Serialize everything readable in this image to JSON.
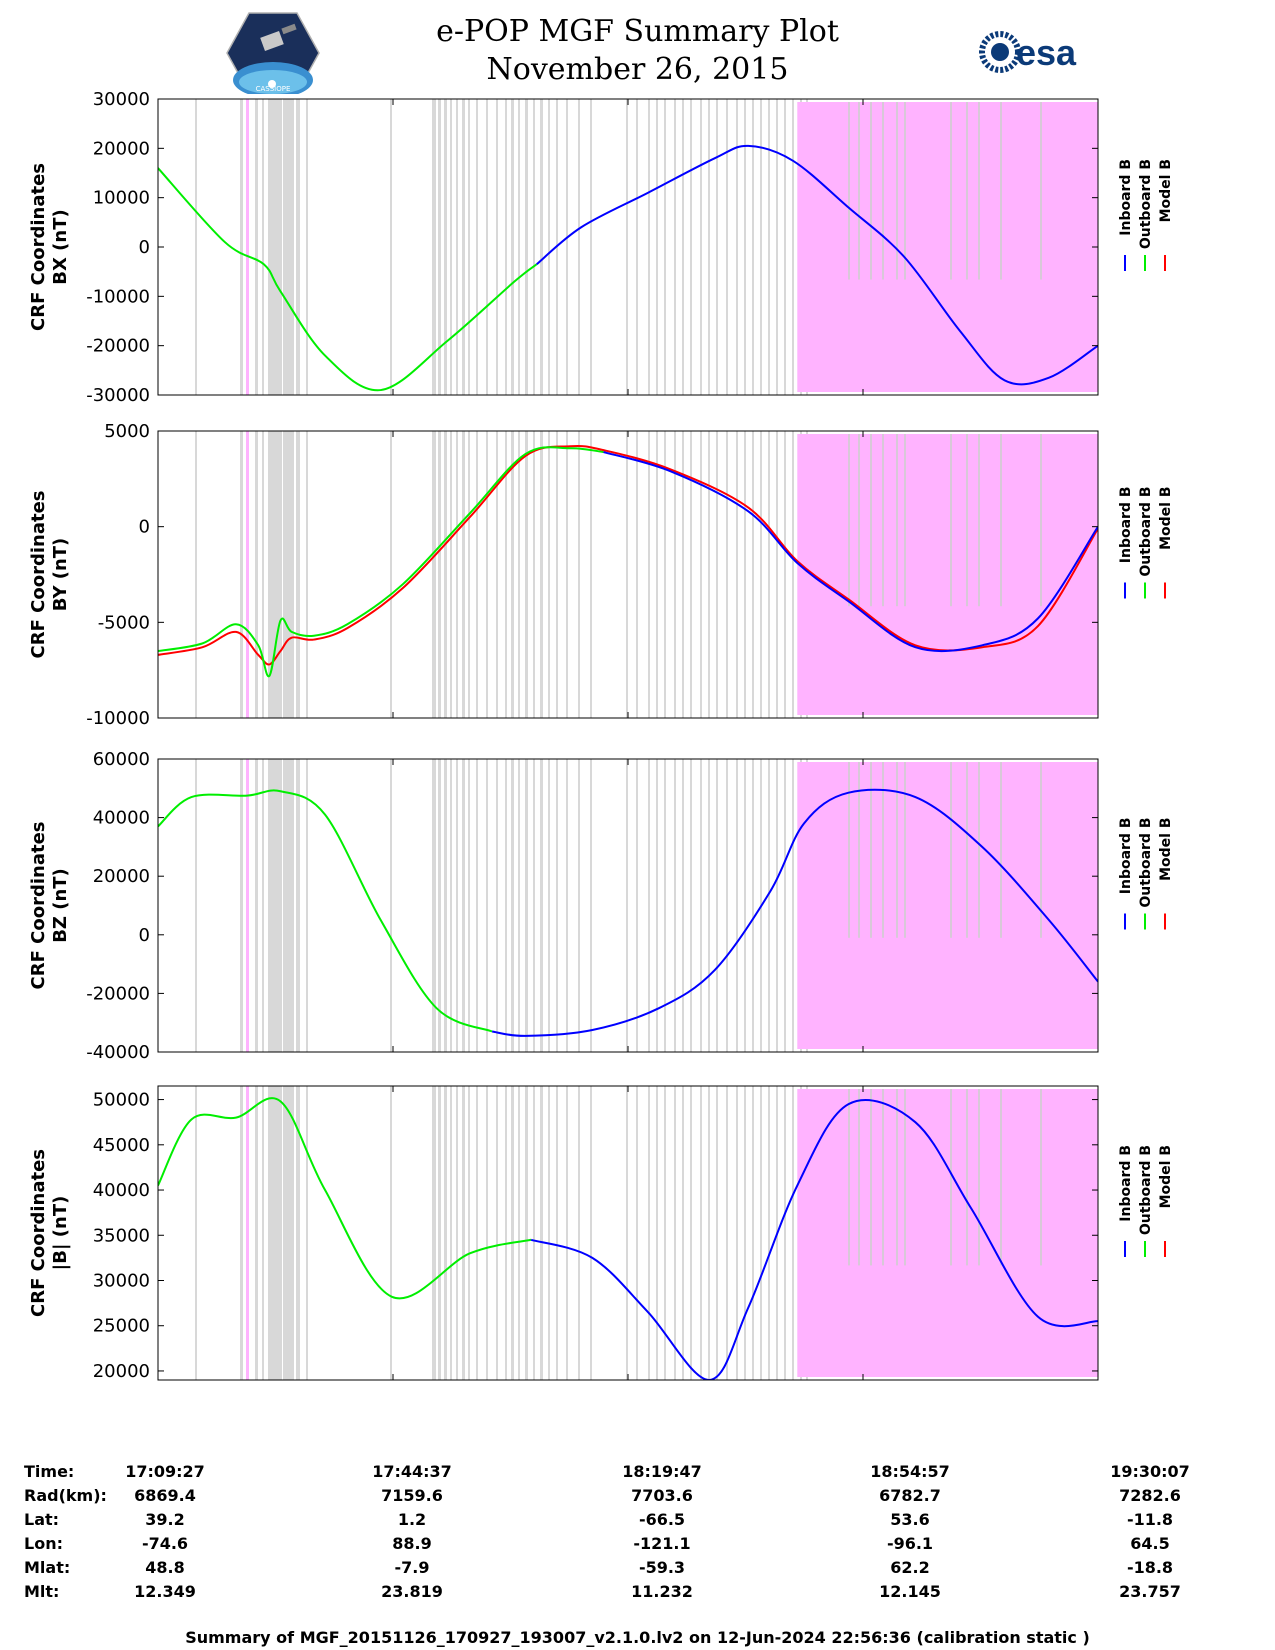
{
  "header": {
    "title_line1": "e-POP MGF Summary Plot",
    "title_line2": "November 26, 2015",
    "left_logo": "cassiope-mission-logo",
    "left_logo_text": "CASSIOPE",
    "right_logo_text": "esa"
  },
  "legend": [
    "Inboard B",
    "Outboard B",
    "Model B"
  ],
  "colors": {
    "inboard": "#0000ff",
    "outboard": "#00ee00",
    "model": "#ff0000",
    "gap_shading": "#d8d8d8",
    "flag_shading": "#ffb3ff"
  },
  "chart_data": [
    {
      "type": "line",
      "id": "bx",
      "ylabel_line1": "CRF Coordinates",
      "ylabel_line2": "BX (nT)",
      "ylim": [
        -30000,
        30000
      ],
      "yticks": [
        "30000",
        "20000",
        "10000",
        "0",
        "-10000",
        "-20000",
        "-30000"
      ],
      "ytick_values": [
        30000,
        20000,
        10000,
        0,
        -10000,
        -20000,
        -30000
      ],
      "x_range_seconds": [
        0,
        8440
      ],
      "magenta_region": [
        5740,
        8440
      ],
      "series": [
        {
          "name": "Outboard B",
          "x": [
            0,
            600,
            950,
            1100,
            1500,
            2000,
            2600,
            3200,
            3400
          ],
          "values": [
            16000,
            1000,
            -3500,
            -9000,
            -22000,
            -29000,
            -19000,
            -7000,
            -3500
          ]
        },
        {
          "name": "Inboard B",
          "x": [
            3400,
            3800,
            4400,
            5000,
            5300,
            5700,
            6200,
            6700,
            7200,
            7600,
            8000,
            8440
          ],
          "values": [
            -3500,
            4000,
            11000,
            18000,
            20500,
            17500,
            8000,
            -2000,
            -17000,
            -27000,
            -26500,
            -20000
          ]
        }
      ]
    },
    {
      "type": "line",
      "id": "by",
      "ylabel_line1": "CRF Coordinates",
      "ylabel_line2": "BY (nT)",
      "ylim": [
        -10000,
        5000
      ],
      "yticks": [
        "5000",
        "0",
        "-5000",
        "-10000"
      ],
      "ytick_values": [
        5000,
        0,
        -5000,
        -10000
      ],
      "x_range_seconds": [
        0,
        8440
      ],
      "magenta_region": [
        5740,
        8440
      ],
      "series": [
        {
          "name": "Model B",
          "x": [
            0,
            400,
            700,
            900,
            1000,
            1100,
            1200,
            1400,
            1700,
            2200,
            2800,
            3300,
            3700,
            4000,
            4600,
            5300,
            5740,
            6200,
            6800,
            7400,
            7900,
            8440
          ],
          "values": [
            -6700,
            -6300,
            -5500,
            -6700,
            -7200,
            -6500,
            -5800,
            -5900,
            -5300,
            -3200,
            500,
            3700,
            4200,
            4000,
            3000,
            1000,
            -1800,
            -3800,
            -6200,
            -6300,
            -5200,
            -100
          ]
        },
        {
          "name": "Outboard B",
          "x": [
            0,
            400,
            700,
            900,
            1000,
            1100,
            1200,
            1400,
            1700,
            2200,
            2800,
            3300,
            3700,
            4000
          ],
          "values": [
            -6500,
            -6100,
            -5100,
            -6200,
            -7800,
            -4900,
            -5500,
            -5700,
            -5100,
            -3000,
            700,
            3800,
            4100,
            3900
          ]
        },
        {
          "name": "Inboard B",
          "x": [
            4000,
            4600,
            5300,
            5740,
            6200,
            6800,
            7400,
            7900,
            8440
          ],
          "values": [
            3900,
            2900,
            800,
            -1900,
            -3900,
            -6300,
            -6200,
            -4800,
            0
          ]
        }
      ]
    },
    {
      "type": "line",
      "id": "bz",
      "ylabel_line1": "CRF Coordinates",
      "ylabel_line2": "BZ (nT)",
      "ylim": [
        -40000,
        60000
      ],
      "yticks": [
        "60000",
        "40000",
        "20000",
        "0",
        "-20000",
        "-40000"
      ],
      "ytick_values": [
        60000,
        40000,
        20000,
        0,
        -20000,
        -40000
      ],
      "x_range_seconds": [
        0,
        8440
      ],
      "magenta_region": [
        5740,
        8440
      ],
      "series": [
        {
          "name": "Outboard B",
          "x": [
            0,
            300,
            800,
            1100,
            1500,
            2000,
            2500,
            3000
          ],
          "values": [
            37000,
            47000,
            47500,
            49000,
            41000,
            5000,
            -25000,
            -33000
          ]
        },
        {
          "name": "Inboard B",
          "x": [
            3000,
            3300,
            3900,
            4500,
            5000,
            5500,
            5800,
            6200,
            6800,
            7400,
            8000,
            8440
          ],
          "values": [
            -33000,
            -34500,
            -32500,
            -25000,
            -12000,
            15000,
            38000,
            48500,
            47000,
            30000,
            5000,
            -16000
          ]
        }
      ]
    },
    {
      "type": "line",
      "id": "bmag",
      "ylabel_line1": "CRF Coordinates",
      "ylabel_line2": "|B| (nT)",
      "ylim": [
        19000,
        51500
      ],
      "yticks": [
        "50000",
        "45000",
        "40000",
        "35000",
        "30000",
        "25000",
        "20000"
      ],
      "ytick_values": [
        50000,
        45000,
        40000,
        35000,
        30000,
        25000,
        20000
      ],
      "x_range_seconds": [
        0,
        8440
      ],
      "magenta_region": [
        5740,
        8440
      ],
      "series": [
        {
          "name": "Outboard B",
          "x": [
            0,
            300,
            700,
            1100,
            1500,
            2100,
            2800,
            3350
          ],
          "values": [
            40500,
            47800,
            48000,
            49800,
            40000,
            28200,
            33000,
            34500
          ]
        },
        {
          "name": "Inboard B",
          "x": [
            3350,
            3900,
            4400,
            4950,
            5300,
            5740,
            6200,
            6800,
            7300,
            7900,
            8440
          ],
          "values": [
            34500,
            32500,
            26500,
            19000,
            27000,
            40500,
            49500,
            47500,
            38000,
            26000,
            25500
          ]
        }
      ]
    }
  ],
  "xaxis": {
    "row_labels": [
      "Time:",
      "Rad(km):",
      "Lat:",
      "Lon:",
      "Mlat:",
      "Mlt:"
    ],
    "columns": [
      {
        "time": "17:09:27",
        "rad": "6869.4",
        "lat": "39.2",
        "lon": "-74.6",
        "mlat": "48.8",
        "mlt": "12.349"
      },
      {
        "time": "17:44:37",
        "rad": "7159.6",
        "lat": "1.2",
        "lon": "88.9",
        "mlat": "-7.9",
        "mlt": "23.819"
      },
      {
        "time": "18:19:47",
        "rad": "7703.6",
        "lat": "-66.5",
        "lon": "-121.1",
        "mlat": "-59.3",
        "mlt": "11.232"
      },
      {
        "time": "18:54:57",
        "rad": "6782.7",
        "lat": "53.6",
        "lon": "-96.1",
        "mlat": "62.2",
        "mlt": "12.145"
      },
      {
        "time": "19:30:07",
        "rad": "7282.6",
        "lat": "-11.8",
        "lon": "64.5",
        "mlat": "-18.8",
        "mlt": "23.757"
      }
    ]
  },
  "footer": "Summary of MGF_20151126_170927_193007_v2.1.0.lv2 on 12-Jun-2024 22:56:36 (calibration static )"
}
